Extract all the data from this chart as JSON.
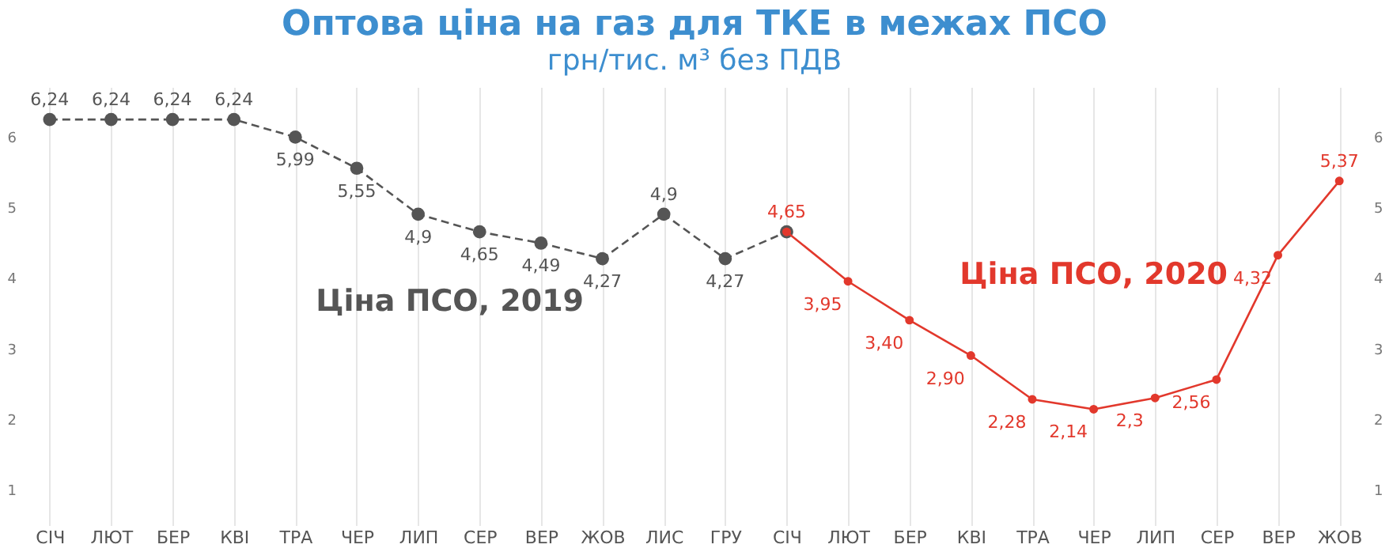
{
  "chart_data": {
    "type": "line",
    "title": "Оптова ціна на газ для ТКЕ в межах ПСО",
    "subtitle": "грн/тис. м³ без ПДВ",
    "categories": [
      "СІЧ",
      "ЛЮТ",
      "БЕР",
      "КВІ",
      "ТРА",
      "ЧЕР",
      "ЛИП",
      "СЕР",
      "ВЕР",
      "ЖОВ",
      "ЛИС",
      "ГРУ",
      "СІЧ",
      "ЛЮТ",
      "БЕР",
      "КВІ",
      "ТРА",
      "ЧЕР",
      "ЛИП",
      "СЕР",
      "ВЕР",
      "ЖОВ"
    ],
    "series": [
      {
        "name": "Ціна ПСО, 2019",
        "color": "#555555",
        "line_style": "dashed",
        "values": [
          6.24,
          6.24,
          6.24,
          6.24,
          5.99,
          5.55,
          4.9,
          4.65,
          4.49,
          4.27,
          4.9,
          4.27,
          4.65,
          null,
          null,
          null,
          null,
          null,
          null,
          null,
          null,
          null
        ],
        "value_labels": [
          "6,24",
          "6,24",
          "6,24",
          "6,24",
          "5,99",
          "5,55",
          "4,9",
          "4,65",
          "4,49",
          "4,27",
          "4,9",
          "4,27",
          null,
          null,
          null,
          null,
          null,
          null,
          null,
          null,
          null,
          null
        ]
      },
      {
        "name": "Ціна ПСО, 2020",
        "color": "#e2382c",
        "line_style": "solid",
        "values": [
          null,
          null,
          null,
          null,
          null,
          null,
          null,
          null,
          null,
          null,
          null,
          null,
          4.65,
          3.95,
          3.4,
          2.9,
          2.28,
          2.14,
          2.3,
          2.56,
          4.32,
          5.37
        ],
        "value_labels": [
          null,
          null,
          null,
          null,
          null,
          null,
          null,
          null,
          null,
          null,
          null,
          null,
          "4,65",
          "3,95",
          "3,40",
          "2,90",
          "2,28",
          "2,14",
          "2,3",
          "2,56",
          "4,32",
          "5,37"
        ]
      }
    ],
    "marker": "circle",
    "grid": "x",
    "legend": false,
    "ylim": [
      0.5,
      6.7
    ],
    "yticks": [
      1,
      2,
      3,
      4,
      5,
      6
    ],
    "y2lim": [
      0.5,
      6.7
    ],
    "y2ticks": [
      1,
      2,
      3,
      4,
      5,
      6
    ]
  }
}
